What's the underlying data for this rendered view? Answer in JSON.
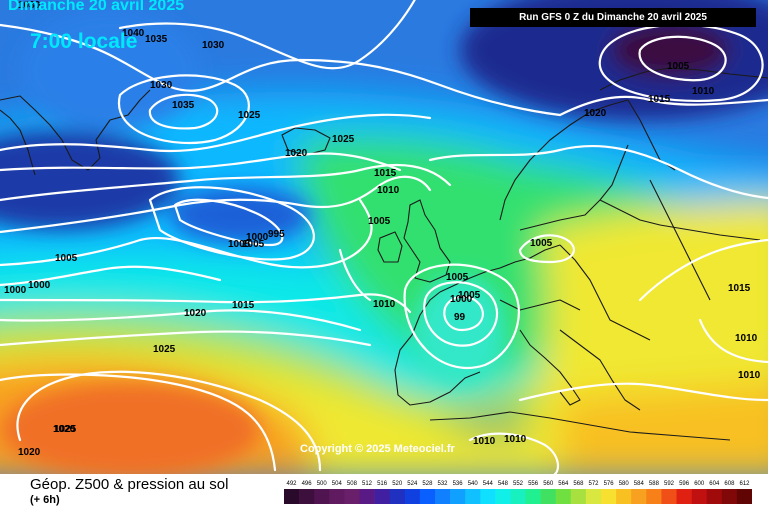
{
  "header": {
    "date": "Dimanche 20 avril 2025",
    "time": "7:00 locale",
    "run": "Run GFS 0 Z du Dimanche 20 avril 2025"
  },
  "copyright": "Copyright © 2025 Meteociel.fr",
  "footer": {
    "title": "Géop. Z500 & pression au sol",
    "subtitle": "(+ 6h)"
  },
  "legend": {
    "labels": [
      "492",
      "496",
      "500",
      "504",
      "508",
      "512",
      "516",
      "520",
      "524",
      "528",
      "532",
      "536",
      "540",
      "544",
      "548",
      "552",
      "556",
      "560",
      "564",
      "568",
      "572",
      "576",
      "580",
      "584",
      "588",
      "592",
      "596",
      "600",
      "604",
      "608",
      "612"
    ],
    "colors": [
      "#2a0a2a",
      "#3d0f3d",
      "#501450",
      "#601a60",
      "#6a1f6a",
      "#5a1a86",
      "#4020a0",
      "#2030c0",
      "#1040e0",
      "#0a60ff",
      "#1080ff",
      "#10a0ff",
      "#10c0ff",
      "#10e0ff",
      "#10f0e8",
      "#18f0c0",
      "#20f090",
      "#40e060",
      "#70e040",
      "#a8e040",
      "#d8e840",
      "#f8e030",
      "#f8c020",
      "#f8a020",
      "#f88018",
      "#f05018",
      "#e02010",
      "#c01010",
      "#a00a0a",
      "#800808",
      "#600404"
    ]
  },
  "map": {
    "pressure_labels": [
      "1030",
      "1040",
      "1035",
      "1030",
      "1030",
      "1035",
      "1025",
      "1025",
      "1020",
      "1015",
      "1010",
      "1005",
      "1005",
      "1000",
      "995",
      "1005",
      "1005",
      "1000",
      "1000",
      "1005",
      "1015",
      "1020",
      "1005",
      "1000",
      "99",
      "1010",
      "1025",
      "1020",
      "1020",
      "1025",
      "1010",
      "1010",
      "1005",
      "1015",
      "1010",
      "1015",
      "1020",
      "1005"
    ],
    "colors": {
      "contour": "#ffffff",
      "coast": "#1a1a1a",
      "deep_purple": "#3a1040",
      "navy": "#1a2a90",
      "blue": "#1a70e8",
      "sky": "#10b8ff",
      "cyan": "#10e8e8",
      "green": "#30e070",
      "lime": "#a8e040",
      "yellow": "#f0e830",
      "orange": "#f8a020",
      "red_orange": "#f07028"
    }
  }
}
